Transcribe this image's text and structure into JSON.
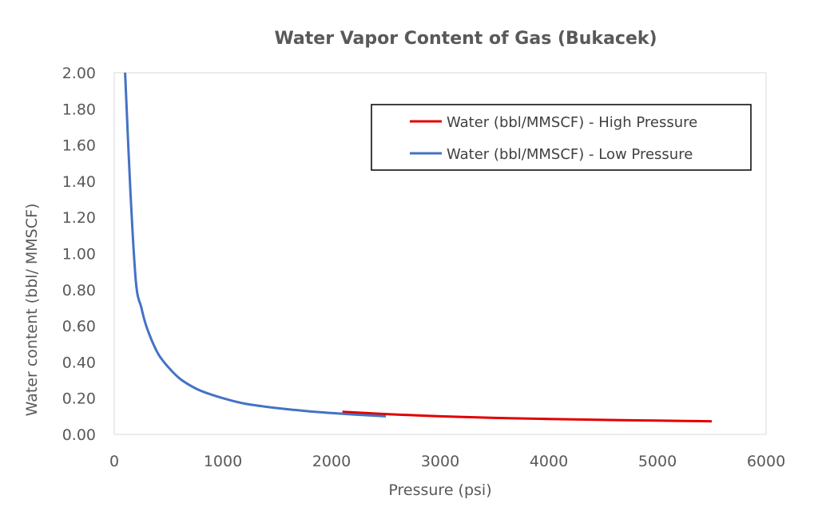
{
  "chart_data": {
    "type": "line",
    "title": "Water Vapor Content of Gas (Bukacek)",
    "xlabel": "Pressure (psi)",
    "ylabel": "Water content (bbl/ MMSCF)",
    "xlim": [
      0,
      6000
    ],
    "ylim": [
      0,
      2.0
    ],
    "xticks": [
      "0",
      "1000",
      "2000",
      "3000",
      "4000",
      "5000",
      "6000"
    ],
    "yticks": [
      "0.00",
      "0.20",
      "0.40",
      "0.60",
      "0.80",
      "1.00",
      "1.20",
      "1.40",
      "1.60",
      "1.80",
      "2.00"
    ],
    "grid": false,
    "legend_position": "top-right",
    "series": [
      {
        "name": "Water (bbl/MMSCF) - High Pressure",
        "color": "#e00000",
        "x": [
          2100,
          2500,
          3000,
          3500,
          4000,
          4500,
          5000,
          5500
        ],
        "y": [
          0.125,
          0.112,
          0.1,
          0.091,
          0.085,
          0.08,
          0.076,
          0.072
        ]
      },
      {
        "name": "Water (bbl/MMSCF) - Low Pressure",
        "color": "#4472c4",
        "x": [
          100,
          150,
          200,
          250,
          300,
          400,
          500,
          600,
          700,
          800,
          1000,
          1200,
          1500,
          1800,
          2000,
          2200,
          2500
        ],
        "y": [
          2.0,
          1.33,
          0.84,
          0.7,
          0.59,
          0.45,
          0.37,
          0.31,
          0.27,
          0.24,
          0.2,
          0.17,
          0.145,
          0.127,
          0.118,
          0.11,
          0.1
        ]
      }
    ]
  }
}
